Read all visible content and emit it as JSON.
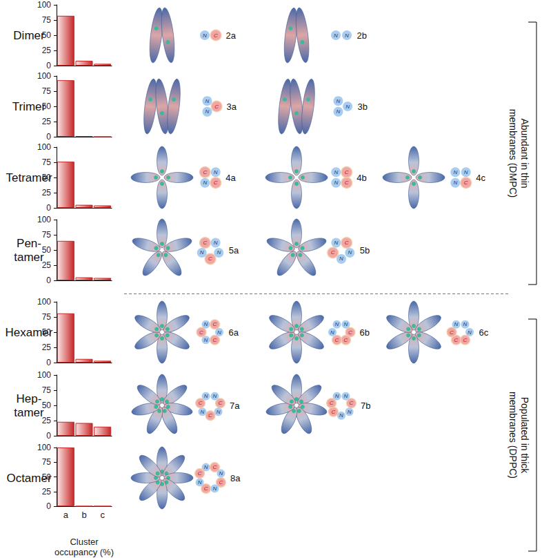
{
  "chart_data": [
    {
      "type": "bar",
      "title": "Dimer",
      "categories": [
        "a",
        "b",
        "c"
      ],
      "values": [
        82,
        8,
        3
      ],
      "color": "#c62828",
      "ylim": [
        0,
        100
      ],
      "yticks": [
        0,
        25,
        50,
        75,
        100
      ],
      "grid": false,
      "tick_labels": "y"
    },
    {
      "type": "bar",
      "title": "Trimer",
      "categories": [
        "a",
        "b",
        "c"
      ],
      "values": [
        93,
        1,
        0
      ],
      "color": "#c62828",
      "ylim": [
        0,
        100
      ],
      "yticks": [
        0,
        25,
        50,
        75,
        100
      ],
      "grid": false,
      "tick_labels": "y"
    },
    {
      "type": "bar",
      "title": "Tetramer",
      "categories": [
        "a",
        "b",
        "c"
      ],
      "values": [
        76,
        5,
        4
      ],
      "color": "#c62828",
      "ylim": [
        0,
        100
      ],
      "yticks": [
        0,
        25,
        50,
        75,
        100
      ],
      "grid": false,
      "tick_labels": "y"
    },
    {
      "type": "bar",
      "title": "Pen-\ntamer",
      "categories": [
        "a",
        "b",
        "c"
      ],
      "values": [
        65,
        5,
        4
      ],
      "color": "#c62828",
      "ylim": [
        0,
        100
      ],
      "yticks": [
        0,
        25,
        50,
        75,
        100
      ],
      "grid": false,
      "tick_labels": "y"
    },
    {
      "type": "bar",
      "title": "Hexamer",
      "categories": [
        "a",
        "b",
        "c"
      ],
      "values": [
        81,
        6,
        3
      ],
      "color": "#c62828",
      "ylim": [
        0,
        100
      ],
      "yticks": [
        0,
        25,
        50,
        75,
        100
      ],
      "grid": false,
      "tick_labels": "y"
    },
    {
      "type": "bar",
      "title": "Hep-\ntamer",
      "categories": [
        "a",
        "b",
        "c"
      ],
      "values": [
        23,
        21,
        15
      ],
      "color": "#c62828",
      "ylim": [
        0,
        100
      ],
      "yticks": [
        0,
        25,
        50,
        75,
        100
      ],
      "grid": false,
      "tick_labels": "y"
    },
    {
      "type": "bar",
      "title": "Octamer",
      "categories": [
        "a",
        "b",
        "c"
      ],
      "values": [
        100,
        0,
        0
      ],
      "color": "#c62828",
      "ylim": [
        0,
        100
      ],
      "yticks": [
        0,
        25,
        50,
        75,
        100
      ],
      "grid": false,
      "xlabel": "Cluster\noccupancy (%)"
    }
  ],
  "clusters": [
    [
      {
        "label": "2a",
        "nodes": [
          "N",
          "C"
        ]
      },
      {
        "label": "2b",
        "nodes": [
          "N",
          "N"
        ]
      }
    ],
    [
      {
        "label": "3a",
        "nodes": [
          "N",
          "C",
          "N"
        ]
      },
      {
        "label": "3b",
        "nodes": [
          "N",
          "N",
          "N"
        ]
      }
    ],
    [
      {
        "label": "4a",
        "nodes": [
          "C",
          "N",
          "C",
          "N"
        ]
      },
      {
        "label": "4b",
        "nodes": [
          "N",
          "C",
          "C",
          "N"
        ]
      },
      {
        "label": "4c",
        "nodes": [
          "N",
          "N",
          "C",
          "N"
        ]
      }
    ],
    [
      {
        "label": "5a",
        "nodes": [
          "C",
          "N",
          "N",
          "C",
          "N"
        ]
      },
      {
        "label": "5b",
        "nodes": [
          "N",
          "C",
          "N",
          "N",
          "C"
        ]
      }
    ],
    [
      {
        "label": "6a",
        "nodes": [
          "N",
          "C",
          "N",
          "C",
          "N",
          "C"
        ]
      },
      {
        "label": "6b",
        "nodes": [
          "N",
          "N",
          "C",
          "C",
          "C",
          "N"
        ]
      },
      {
        "label": "6c",
        "nodes": [
          "N",
          "N",
          "N",
          "C",
          "C",
          "C"
        ]
      }
    ],
    [
      {
        "label": "7a",
        "nodes": [
          "N",
          "N",
          "C",
          "N",
          "C",
          "N",
          "C"
        ]
      },
      {
        "label": "7b",
        "nodes": [
          "N",
          "N",
          "C",
          "N",
          "N",
          "C",
          "C"
        ]
      }
    ],
    [
      {
        "label": "8a",
        "nodes": [
          "N",
          "C",
          "N",
          "C",
          "N",
          "C",
          "N",
          "C"
        ]
      }
    ]
  ],
  "brackets": [
    {
      "text": "Abundant in thin\nmembranes (DMPC)",
      "panels": [
        "Dimer",
        "Trimer",
        "Tetramer",
        "Pen-\ntamer"
      ]
    },
    {
      "text": "Populated in thick\nmembranes (DPPC)",
      "panels": [
        "Hexamer",
        "Hep-\ntamer",
        "Octamer"
      ]
    }
  ]
}
